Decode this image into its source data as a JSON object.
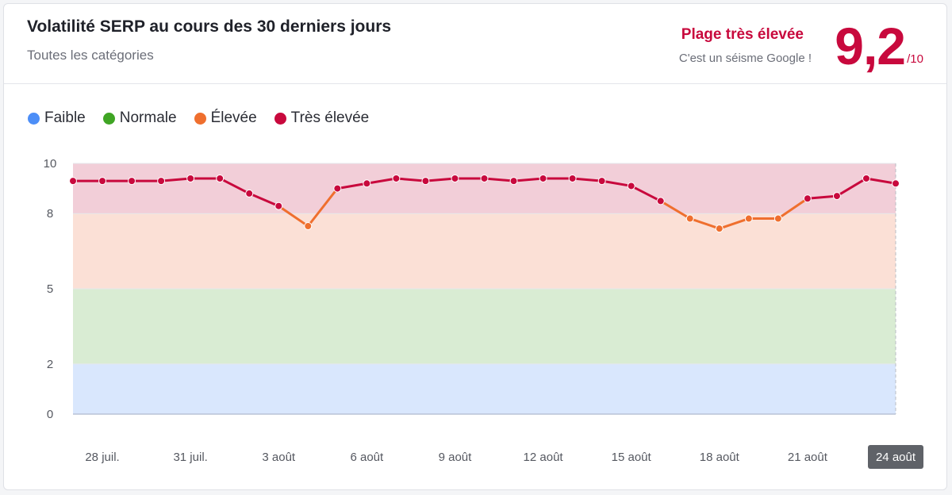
{
  "header": {
    "title": "Volatilité SERP au cours des 30 derniers jours",
    "subtitle": "Toutes les catégories",
    "range_label": "Plage très élevée",
    "range_desc": "C'est un séisme Google !",
    "score": "9,2",
    "score_unit": "/10"
  },
  "legend": [
    {
      "label": "Faible",
      "color": "#4c8ef7"
    },
    {
      "label": "Normale",
      "color": "#3fa524"
    },
    {
      "label": "Élevée",
      "color": "#ef6f2e"
    },
    {
      "label": "Très élevée",
      "color": "#c8093d"
    }
  ],
  "chart_data": {
    "type": "line",
    "title": "Volatilité SERP au cours des 30 derniers jours",
    "xlabel": "",
    "ylabel": "",
    "ylim": [
      0,
      10
    ],
    "yticks": [
      0,
      2,
      5,
      8,
      10
    ],
    "grid": true,
    "bands": [
      {
        "name": "Faible",
        "from": 0,
        "to": 2,
        "color": "#d9e7fd"
      },
      {
        "name": "Normale",
        "from": 2,
        "to": 5,
        "color": "#d9ecd3"
      },
      {
        "name": "Élevée",
        "from": 5,
        "to": 8,
        "color": "#fbe0d6"
      },
      {
        "name": "Très élevée",
        "from": 8,
        "to": 10,
        "color": "#f2ced8"
      }
    ],
    "x": [
      "27 juil.",
      "28 juil.",
      "29 juil.",
      "30 juil.",
      "31 juil.",
      "1 août",
      "2 août",
      "3 août",
      "4 août",
      "5 août",
      "6 août",
      "7 août",
      "8 août",
      "9 août",
      "10 août",
      "11 août",
      "12 août",
      "13 août",
      "14 août",
      "15 août",
      "16 août",
      "17 août",
      "18 août",
      "19 août",
      "20 août",
      "21 août",
      "22 août",
      "23 août",
      "24 août"
    ],
    "xtick_labels": [
      "28 juil.",
      "31 juil.",
      "3 août",
      "6 août",
      "9 août",
      "12 août",
      "15 août",
      "18 août",
      "21 août",
      "24 août"
    ],
    "xtick_indices": [
      1,
      4,
      7,
      10,
      13,
      16,
      19,
      22,
      25,
      28
    ],
    "highlighted_x": "24 août",
    "series": [
      {
        "values": [
          9.3,
          9.3,
          9.3,
          9.3,
          9.4,
          9.4,
          8.8,
          8.3,
          7.5,
          9.0,
          9.2,
          9.4,
          9.3,
          9.4,
          9.4,
          9.3,
          9.4,
          9.4,
          9.3,
          9.1,
          8.5,
          7.8,
          7.4,
          7.8,
          7.8,
          8.6,
          8.7,
          9.4,
          9.2
        ]
      }
    ]
  }
}
